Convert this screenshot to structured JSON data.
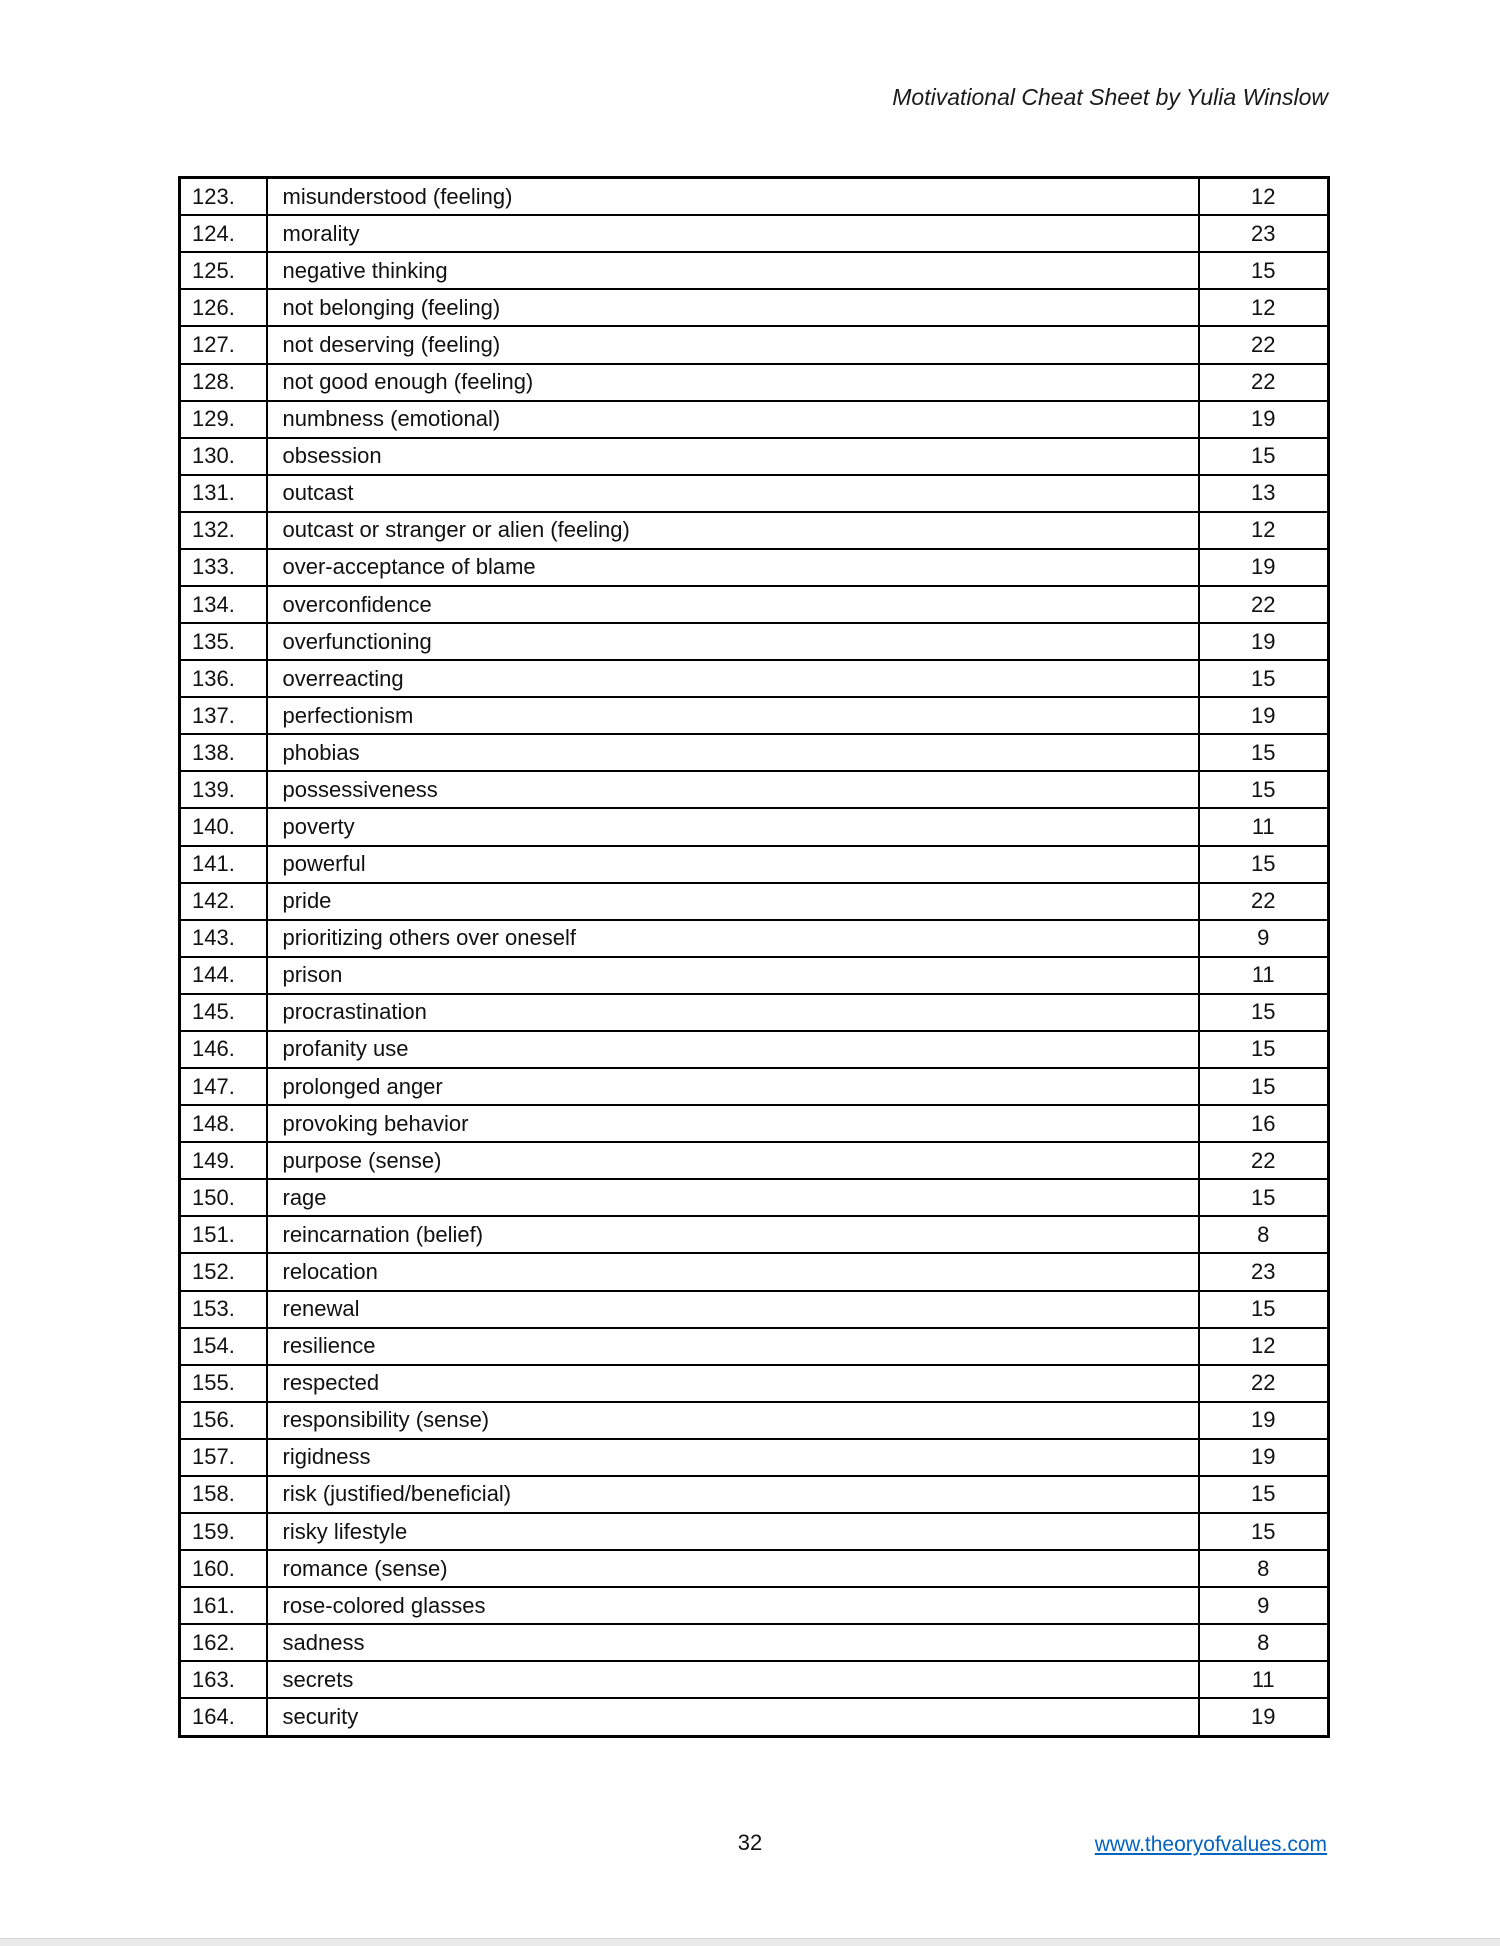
{
  "page": {
    "header": "Motivational Cheat Sheet by Yulia Winslow",
    "page_number": "32",
    "footer_link": "www.theoryofvalues.com"
  },
  "colors": {
    "link": "#0563C1",
    "table_border": "#000000",
    "text": "#111111",
    "bottom_bar": "#eaeaea"
  },
  "table": {
    "rows": [
      {
        "num": "123.",
        "label": "misunderstood (feeling)",
        "value": "12"
      },
      {
        "num": "124.",
        "label": "morality",
        "value": "23"
      },
      {
        "num": "125.",
        "label": "negative thinking",
        "value": "15"
      },
      {
        "num": "126.",
        "label": "not belonging (feeling)",
        "value": "12"
      },
      {
        "num": "127.",
        "label": "not deserving (feeling)",
        "value": "22"
      },
      {
        "num": "128.",
        "label": "not good enough (feeling)",
        "value": "22"
      },
      {
        "num": "129.",
        "label": "numbness (emotional)",
        "value": "19"
      },
      {
        "num": "130.",
        "label": "obsession",
        "value": "15"
      },
      {
        "num": "131.",
        "label": "outcast",
        "value": "13"
      },
      {
        "num": "132.",
        "label": "outcast or stranger or alien (feeling)",
        "value": "12"
      },
      {
        "num": "133.",
        "label": "over-acceptance of blame",
        "value": "19"
      },
      {
        "num": "134.",
        "label": "overconfidence",
        "value": "22"
      },
      {
        "num": "135.",
        "label": "overfunctioning",
        "value": "19"
      },
      {
        "num": "136.",
        "label": "overreacting",
        "value": "15"
      },
      {
        "num": "137.",
        "label": "perfectionism",
        "value": "19"
      },
      {
        "num": "138.",
        "label": "phobias",
        "value": "15"
      },
      {
        "num": "139.",
        "label": "possessiveness",
        "value": "15"
      },
      {
        "num": "140.",
        "label": "poverty",
        "value": "11"
      },
      {
        "num": "141.",
        "label": "powerful",
        "value": "15"
      },
      {
        "num": "142.",
        "label": "pride",
        "value": "22"
      },
      {
        "num": "143.",
        "label": "prioritizing others over oneself",
        "value": "9"
      },
      {
        "num": "144.",
        "label": "prison",
        "value": "11"
      },
      {
        "num": "145.",
        "label": "procrastination",
        "value": "15"
      },
      {
        "num": "146.",
        "label": "profanity use",
        "value": "15"
      },
      {
        "num": "147.",
        "label": "prolonged anger",
        "value": "15"
      },
      {
        "num": "148.",
        "label": "provoking behavior",
        "value": "16"
      },
      {
        "num": "149.",
        "label": "purpose (sense)",
        "value": "22"
      },
      {
        "num": "150.",
        "label": "rage",
        "value": "15"
      },
      {
        "num": "151.",
        "label": "reincarnation (belief)",
        "value": "8"
      },
      {
        "num": "152.",
        "label": "relocation",
        "value": "23"
      },
      {
        "num": "153.",
        "label": "renewal",
        "value": "15"
      },
      {
        "num": "154.",
        "label": "resilience",
        "value": "12"
      },
      {
        "num": "155.",
        "label": "respected",
        "value": "22"
      },
      {
        "num": "156.",
        "label": "responsibility (sense)",
        "value": "19"
      },
      {
        "num": "157.",
        "label": "rigidness",
        "value": "19"
      },
      {
        "num": "158.",
        "label": "risk (justified/beneficial)",
        "value": "15"
      },
      {
        "num": "159.",
        "label": "risky lifestyle",
        "value": "15"
      },
      {
        "num": "160.",
        "label": "romance (sense)",
        "value": "8"
      },
      {
        "num": "161.",
        "label": "rose-colored glasses",
        "value": "9"
      },
      {
        "num": "162.",
        "label": "sadness",
        "value": "8"
      },
      {
        "num": "163.",
        "label": "secrets",
        "value": "11"
      },
      {
        "num": "164.",
        "label": "security",
        "value": "19"
      }
    ]
  }
}
